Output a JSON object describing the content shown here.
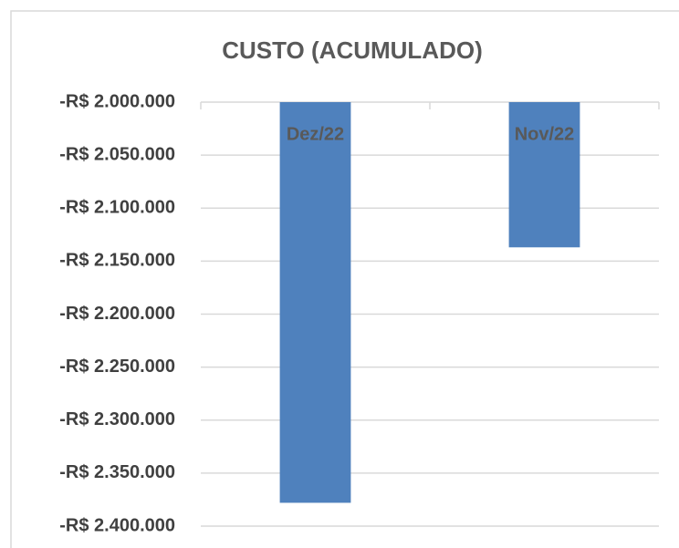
{
  "chart_data": {
    "type": "bar",
    "title": "CUSTO (ACUMULADO)",
    "categories": [
      "Dez/22",
      "Nov/22"
    ],
    "values": [
      -2378000,
      -2137000
    ],
    "color": "#4f81bd",
    "ylim": [
      -2400000,
      -2000000
    ],
    "yticks": [
      {
        "value": -2000000,
        "label": "-R$ 2.000.000"
      },
      {
        "value": -2050000,
        "label": "-R$ 2.050.000"
      },
      {
        "value": -2100000,
        "label": "-R$ 2.100.000"
      },
      {
        "value": -2150000,
        "label": "-R$ 2.150.000"
      },
      {
        "value": -2200000,
        "label": "-R$ 2.200.000"
      },
      {
        "value": -2250000,
        "label": "-R$ 2.250.000"
      },
      {
        "value": -2300000,
        "label": "-R$ 2.300.000"
      },
      {
        "value": -2350000,
        "label": "-R$ 2.350.000"
      },
      {
        "value": -2400000,
        "label": "-R$ 2.400.000"
      }
    ],
    "grid": true,
    "category_axis_position": "top"
  }
}
